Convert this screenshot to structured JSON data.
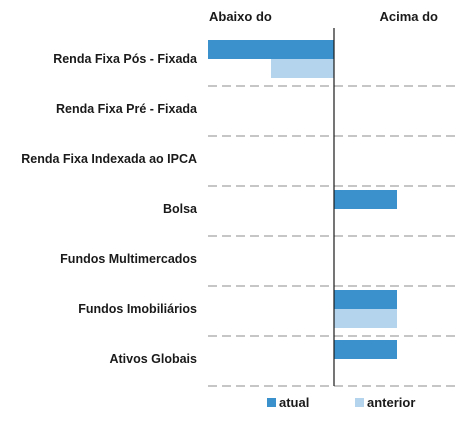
{
  "chart_data": {
    "type": "bar",
    "orientation": "horizontal",
    "left_header": "Abaixo do",
    "right_header": "Acima do",
    "categories": [
      "Renda Fixa Pós - Fixada",
      "Renda Fixa Pré - Fixada",
      "Renda Fixa Indexada ao IPCA",
      "Bolsa",
      "Fundos Multimercados",
      "Fundos Imobiliários",
      "Ativos Globais"
    ],
    "xlim": [
      -2,
      2
    ],
    "series": [
      {
        "name": "atual",
        "color": "#3a91cc",
        "values": [
          -2,
          0,
          0,
          1,
          0,
          1,
          1
        ]
      },
      {
        "name": "anterior",
        "color": "#b3d4ec",
        "values": [
          -1,
          0,
          0,
          0,
          0,
          1,
          0
        ]
      }
    ],
    "legend_position": "bottom-right",
    "grid": "dashed-row-separators"
  }
}
